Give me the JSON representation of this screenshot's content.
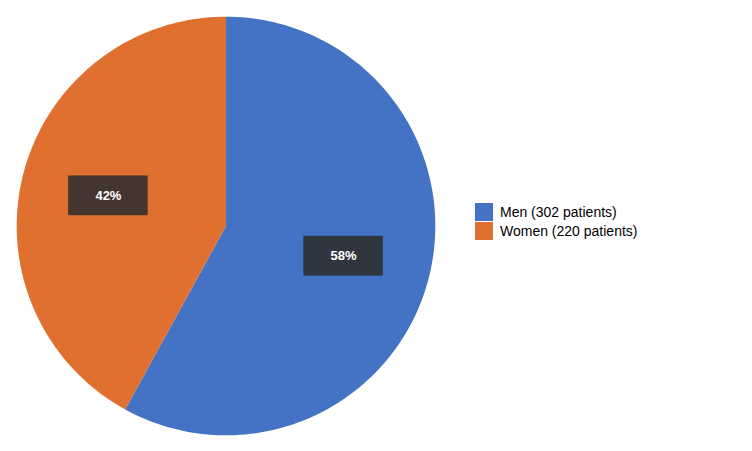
{
  "chart_data": {
    "type": "pie",
    "categories": [
      "Men (302 patients)",
      "Women (220 patients)"
    ],
    "values": [
      58,
      42
    ],
    "value_labels": [
      "58%",
      "42%"
    ],
    "colors": [
      "#4472C4",
      "#E07030"
    ],
    "data_labels": true,
    "legend": "right"
  }
}
